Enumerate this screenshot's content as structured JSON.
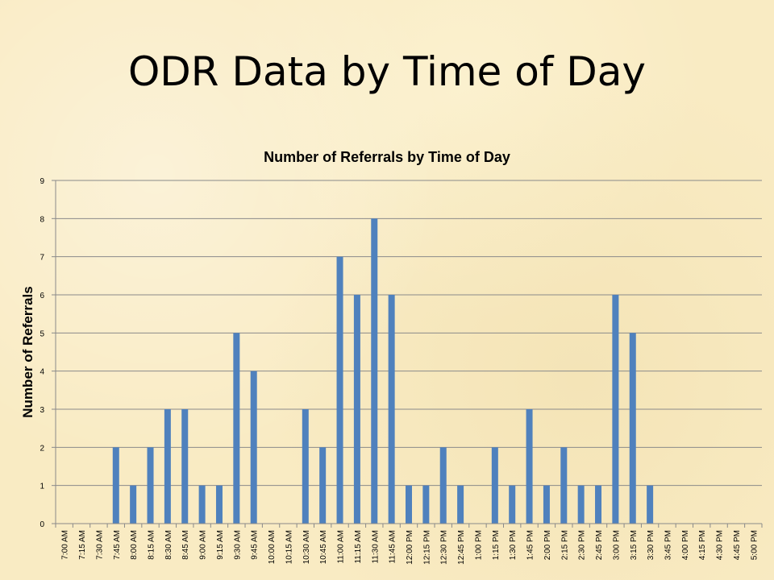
{
  "slide": {
    "title": "ODR Data by Time of Day"
  },
  "chart_data": {
    "type": "bar",
    "title": "Number of Referrals by Time of Day",
    "xlabel": "",
    "ylabel": "Number of Referrals",
    "ylim": [
      0,
      9
    ],
    "yticks": [
      0,
      1,
      2,
      3,
      4,
      5,
      6,
      7,
      8,
      9
    ],
    "grid": true,
    "bar_color": "#4f81bd",
    "categories": [
      "7:00 AM",
      "7:15 AM",
      "7:30 AM",
      "7:45 AM",
      "8:00 AM",
      "8:15 AM",
      "8:30 AM",
      "8:45 AM",
      "9:00 AM",
      "9:15 AM",
      "9:30 AM",
      "9:45 AM",
      "10:00 AM",
      "10:15 AM",
      "10:30 AM",
      "10:45 AM",
      "11:00 AM",
      "11:15 AM",
      "11:30 AM",
      "11:45 AM",
      "12:00 PM",
      "12:15 PM",
      "12:30 PM",
      "12:45 PM",
      "1:00 PM",
      "1:15 PM",
      "1:30 PM",
      "1:45 PM",
      "2:00 PM",
      "2:15 PM",
      "2:30 PM",
      "2:45 PM",
      "3:00 PM",
      "3:15 PM",
      "3:30 PM",
      "3:45 PM",
      "4:00 PM",
      "4:15 PM",
      "4:30 PM",
      "4:45 PM",
      "5:00 PM"
    ],
    "values": [
      0,
      0,
      0,
      2,
      1,
      2,
      3,
      3,
      1,
      1,
      5,
      4,
      0,
      0,
      3,
      2,
      7,
      6,
      8,
      6,
      1,
      1,
      2,
      1,
      0,
      2,
      1,
      3,
      1,
      2,
      1,
      1,
      6,
      5,
      1,
      0,
      0,
      0,
      0,
      0,
      0
    ]
  }
}
